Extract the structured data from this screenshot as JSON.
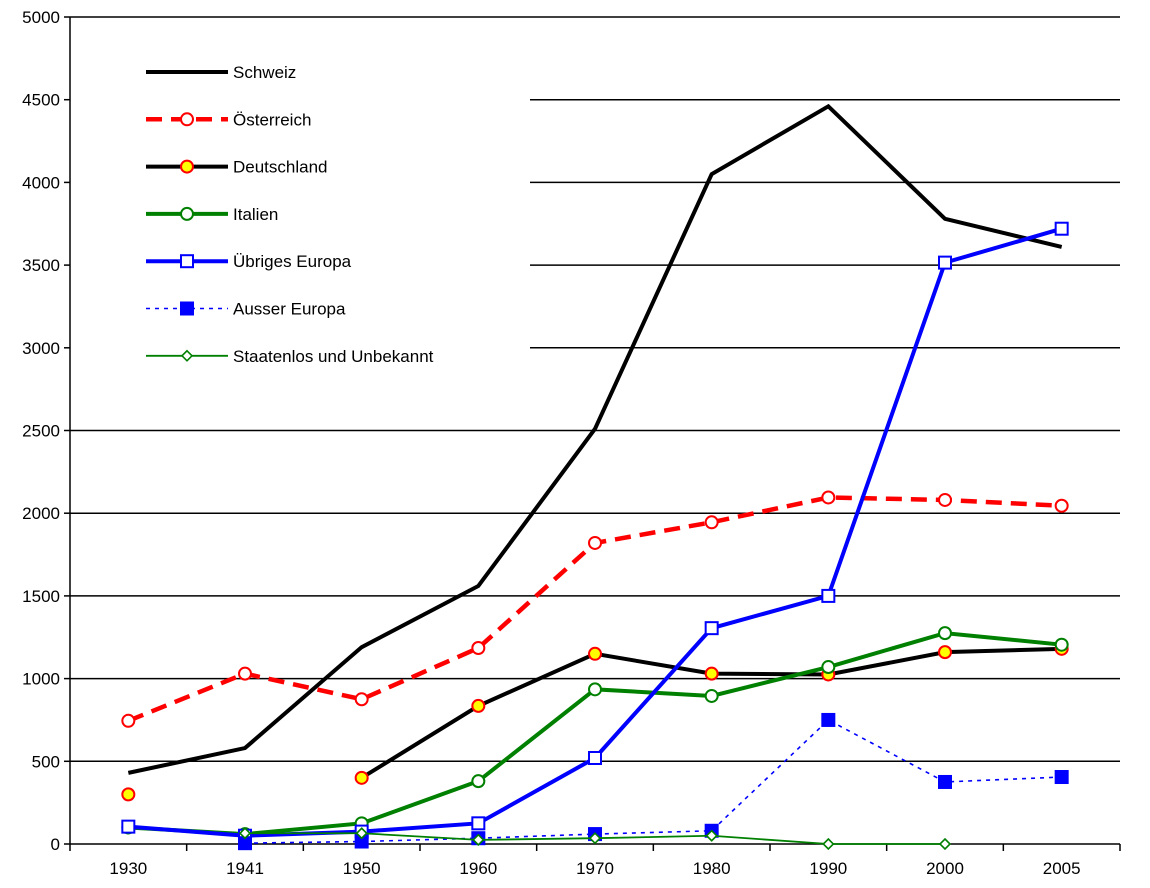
{
  "chart_data": {
    "type": "line",
    "title": "",
    "xlabel": "",
    "ylabel": "",
    "x": [
      "1930",
      "1941",
      "1950",
      "1960",
      "1970",
      "1980",
      "1990",
      "2000",
      "2005"
    ],
    "ylim": [
      0,
      5000
    ],
    "yticks": [
      0,
      500,
      1000,
      1500,
      2000,
      2500,
      3000,
      3500,
      4000,
      4500,
      5000
    ],
    "grid": "horizontal",
    "legend_placement": "top-left",
    "series": [
      {
        "name": "Schweiz",
        "values": [
          430,
          580,
          1190,
          1560,
          2510,
          4050,
          4460,
          3780,
          3610
        ],
        "color": "#000000",
        "line": "solid",
        "marker": "none"
      },
      {
        "name": "Österreich",
        "values": [
          745,
          1030,
          875,
          1185,
          1820,
          1945,
          2095,
          2080,
          2045
        ],
        "color": "#ff0000",
        "line": "dashed",
        "marker": "open-circle"
      },
      {
        "name": "Deutschland",
        "values": [
          300,
          null,
          400,
          835,
          1150,
          1030,
          1025,
          1160,
          1180
        ],
        "color": "#000000",
        "line": "solid",
        "marker": "yellow-circle"
      },
      {
        "name": "Italien",
        "values": [
          100,
          60,
          125,
          380,
          935,
          895,
          1070,
          1275,
          1205
        ],
        "color": "#008000",
        "line": "solid",
        "marker": "open-circle"
      },
      {
        "name": "Übriges Europa",
        "values": [
          105,
          50,
          75,
          125,
          520,
          1305,
          1500,
          3515,
          3720
        ],
        "color": "#0000ff",
        "line": "solid",
        "marker": "open-square"
      },
      {
        "name": "Ausser Europa",
        "values": [
          null,
          5,
          15,
          35,
          60,
          80,
          750,
          375,
          405
        ],
        "color": "#0000ff",
        "line": "dotted",
        "marker": "filled-square"
      },
      {
        "name": "Staatenlos und Unbekannt",
        "values": [
          null,
          65,
          65,
          25,
          35,
          50,
          0,
          0,
          null
        ],
        "color": "#008000",
        "line": "thin",
        "marker": "open-diamond"
      }
    ]
  }
}
